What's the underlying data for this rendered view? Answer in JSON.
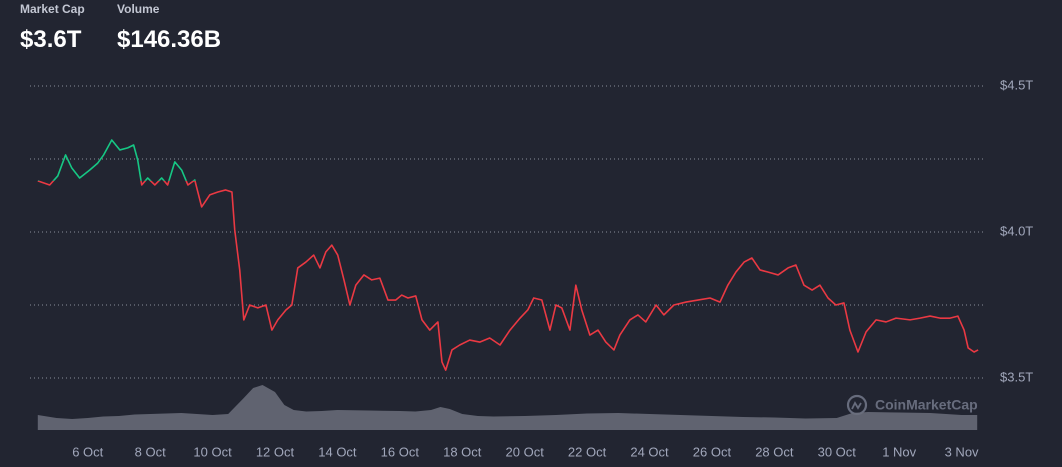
{
  "header": {
    "stats": [
      {
        "label": "Market Cap",
        "value": "$3.6T"
      },
      {
        "label": "Volume",
        "value": "$146.36B"
      }
    ],
    "watermark": "CoinMarketCap"
  },
  "chart_data": {
    "type": "line",
    "up_color": "#16c784",
    "down_color": "#ea3943",
    "grid": true,
    "xlim": [
      4.15,
      34.75
    ],
    "xticks": [
      {
        "value": 6,
        "label": "6 Oct"
      },
      {
        "value": 8,
        "label": "8 Oct"
      },
      {
        "value": 10,
        "label": "10 Oct"
      },
      {
        "value": 12,
        "label": "12 Oct"
      },
      {
        "value": 14,
        "label": "14 Oct"
      },
      {
        "value": 16,
        "label": "16 Oct"
      },
      {
        "value": 18,
        "label": "18 Oct"
      },
      {
        "value": 20,
        "label": "20 Oct"
      },
      {
        "value": 22,
        "label": "22 Oct"
      },
      {
        "value": 24,
        "label": "24 Oct"
      },
      {
        "value": 26,
        "label": "26 Oct"
      },
      {
        "value": 28,
        "label": "28 Oct"
      },
      {
        "value": 30,
        "label": "30 Oct"
      },
      {
        "value": 32,
        "label": "1 Nov"
      },
      {
        "value": 34,
        "label": "3 Nov"
      }
    ],
    "ylim": [
      3.5,
      4.5
    ],
    "yticks": [
      {
        "value": 3.5,
        "label": "$3.5T"
      },
      {
        "value": 3.75,
        "label": null
      },
      {
        "value": 4.0,
        "label": "$4.0T"
      },
      {
        "value": 4.25,
        "label": null
      },
      {
        "value": 4.5,
        "label": "$4.5T"
      }
    ],
    "x": [
      4.4,
      4.78,
      5.04,
      5.29,
      5.49,
      5.74,
      6.06,
      6.32,
      6.51,
      6.77,
      7.03,
      7.28,
      7.47,
      7.6,
      7.73,
      7.92,
      8.15,
      8.37,
      8.56,
      8.79,
      9.01,
      9.21,
      9.43,
      9.65,
      9.91,
      10.17,
      10.42,
      10.62,
      10.71,
      10.87,
      11.0,
      11.19,
      11.45,
      11.71,
      11.9,
      12.09,
      12.35,
      12.54,
      12.73,
      12.99,
      13.24,
      13.44,
      13.63,
      13.82,
      14.01,
      14.21,
      14.4,
      14.59,
      14.85,
      15.1,
      15.36,
      15.62,
      15.87,
      16.06,
      16.26,
      16.51,
      16.71,
      16.96,
      17.22,
      17.35,
      17.47,
      17.67,
      17.92,
      18.24,
      18.56,
      18.88,
      19.21,
      19.53,
      19.85,
      20.1,
      20.29,
      20.55,
      20.81,
      21.0,
      21.19,
      21.45,
      21.64,
      21.83,
      22.09,
      22.35,
      22.6,
      22.86,
      23.05,
      23.37,
      23.63,
      23.88,
      24.21,
      24.46,
      24.78,
      25.17,
      25.55,
      25.94,
      26.26,
      26.51,
      26.77,
      27.03,
      27.28,
      27.54,
      27.79,
      28.12,
      28.44,
      28.69,
      28.95,
      29.21,
      29.46,
      29.72,
      29.97,
      30.23,
      30.42,
      30.68,
      30.94,
      31.26,
      31.58,
      31.9,
      32.35,
      32.67,
      32.99,
      33.31,
      33.63,
      33.88,
      34.08,
      34.21,
      34.4,
      34.53
    ],
    "series": [
      {
        "name": "Market Cap",
        "values": [
          4.175,
          4.161,
          4.192,
          4.264,
          4.219,
          4.185,
          4.212,
          4.236,
          4.264,
          4.315,
          4.281,
          4.288,
          4.298,
          4.247,
          4.161,
          4.185,
          4.161,
          4.185,
          4.161,
          4.24,
          4.212,
          4.161,
          4.178,
          4.086,
          4.127,
          4.137,
          4.144,
          4.137,
          4.007,
          3.87,
          3.699,
          3.75,
          3.74,
          3.75,
          3.664,
          3.699,
          3.733,
          3.75,
          3.877,
          3.897,
          3.921,
          3.877,
          3.932,
          3.955,
          3.921,
          3.836,
          3.75,
          3.818,
          3.853,
          3.836,
          3.842,
          3.767,
          3.767,
          3.784,
          3.774,
          3.781,
          3.699,
          3.664,
          3.692,
          3.555,
          3.527,
          3.596,
          3.613,
          3.63,
          3.623,
          3.637,
          3.613,
          3.664,
          3.705,
          3.733,
          3.774,
          3.767,
          3.664,
          3.75,
          3.74,
          3.664,
          3.818,
          3.733,
          3.647,
          3.664,
          3.623,
          3.596,
          3.647,
          3.699,
          3.716,
          3.692,
          3.75,
          3.716,
          3.75,
          3.76,
          3.767,
          3.774,
          3.76,
          3.818,
          3.863,
          3.897,
          3.911,
          3.87,
          3.863,
          3.853,
          3.877,
          3.887,
          3.818,
          3.801,
          3.818,
          3.774,
          3.75,
          3.757,
          3.664,
          3.589,
          3.658,
          3.699,
          3.692,
          3.705,
          3.699,
          3.705,
          3.712,
          3.705,
          3.705,
          3.712,
          3.664,
          3.603,
          3.589,
          3.596
        ]
      }
    ],
    "volume": {
      "name": "Volume",
      "color": "#6b6f7b",
      "y2lim": [
        0,
        500
      ],
      "x": [
        4.4,
        5,
        5.5,
        6,
        6.5,
        7,
        7.5,
        8,
        8.5,
        9,
        9.5,
        10,
        10.5,
        11,
        11.3,
        11.6,
        12,
        12.3,
        12.6,
        13,
        13.5,
        14,
        15,
        16,
        16.5,
        17,
        17.3,
        17.6,
        18,
        18.5,
        19,
        20,
        21,
        22,
        23,
        24,
        25,
        26,
        27,
        28,
        29,
        30,
        30.5,
        31,
        32,
        33,
        34,
        34.5
      ],
      "values": [
        150,
        120,
        110,
        120,
        135,
        140,
        155,
        160,
        165,
        170,
        160,
        150,
        160,
        320,
        420,
        450,
        380,
        250,
        200,
        185,
        190,
        200,
        195,
        190,
        185,
        200,
        230,
        210,
        160,
        140,
        135,
        140,
        150,
        165,
        170,
        160,
        150,
        140,
        130,
        125,
        115,
        120,
        170,
        180,
        175,
        170,
        150,
        150
      ]
    }
  }
}
